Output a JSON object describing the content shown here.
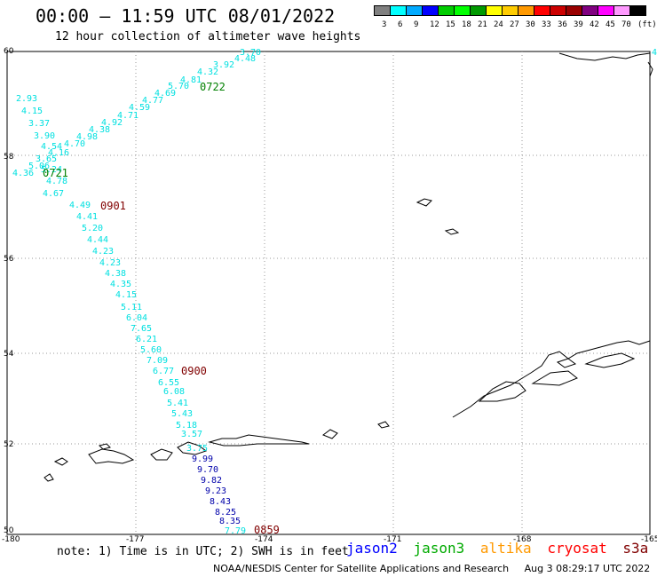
{
  "header": {
    "title": "00:00 – 11:59 UTC 08/01/2022",
    "subtitle": "12 hour collection of altimeter wave heights"
  },
  "scale": {
    "colors": [
      "#808080",
      "#00ffff",
      "#00aaff",
      "#0000ff",
      "#00cc00",
      "#00ff00",
      "#009900",
      "#ffff00",
      "#ffcc00",
      "#ff9900",
      "#ff0000",
      "#cc0000",
      "#990000",
      "#800080",
      "#ff00ff",
      "#ff99ff",
      "#000000"
    ],
    "labels": [
      "3",
      "6",
      "9",
      "12",
      "15",
      "18",
      "21",
      "24",
      "27",
      "30",
      "33",
      "36",
      "39",
      "42",
      "45",
      "70",
      "(ft)"
    ]
  },
  "map": {
    "lat_labels": [
      "60",
      "58",
      "56",
      "54",
      "52",
      "50"
    ],
    "lon_labels": [
      "-180",
      "-177",
      "-174",
      "-171",
      "-168",
      "-165"
    ],
    "track_color": "#00e0e0",
    "track_values": [
      "3.70",
      "4.48",
      "3.92",
      "4.32",
      "4.81",
      "5.70",
      "4.69",
      "4.77",
      "4.59",
      "4.71",
      "4.92",
      "4.38",
      "4.98",
      "4.70",
      "4.54",
      "4.16",
      "3.65",
      "5.06",
      "5.24",
      "4.36",
      "2.93",
      "4.15",
      "3.37",
      "3.90",
      "4.78",
      "4.67",
      "4.49",
      "4.41",
      "5.20",
      "4.44",
      "4.23",
      "4.23",
      "4.38",
      "4.35",
      "4.15",
      "5.11",
      "6.04",
      "7.65",
      "6.21",
      "5.60",
      "7.09",
      "6.77",
      "6.55",
      "6.08",
      "5.41",
      "5.43",
      "5.18",
      "3.57",
      "3.75"
    ],
    "deep_values": [
      "9.99",
      "9.70",
      "9.82",
      "9.23",
      "8.43",
      "8.25",
      "8.35",
      "7.79"
    ],
    "deep_color": "#0000aa",
    "times": [
      {
        "label": "0722",
        "color": "#008000"
      },
      {
        "label": "0721",
        "color": "#008000"
      },
      {
        "label": "0901",
        "color": "#800000"
      },
      {
        "label": "0900",
        "color": "#800000"
      },
      {
        "label": "0859",
        "color": "#800000"
      }
    ],
    "edge_value": "4"
  },
  "note": "note: 1) Time is in UTC; 2) SWH is in feet",
  "satellites": [
    {
      "name": "jason2",
      "color": "#0000ff"
    },
    {
      "name": "jason3",
      "color": "#00aa00"
    },
    {
      "name": "altika",
      "color": "#ff9900"
    },
    {
      "name": "cryosat",
      "color": "#ff0000"
    },
    {
      "name": "s3a",
      "color": "#800000"
    }
  ],
  "footer": {
    "credit": "NOAA/NESDIS Center for Satellite Applications and Research",
    "timestamp": "Aug  3 08:29:17 UTC 2022"
  }
}
